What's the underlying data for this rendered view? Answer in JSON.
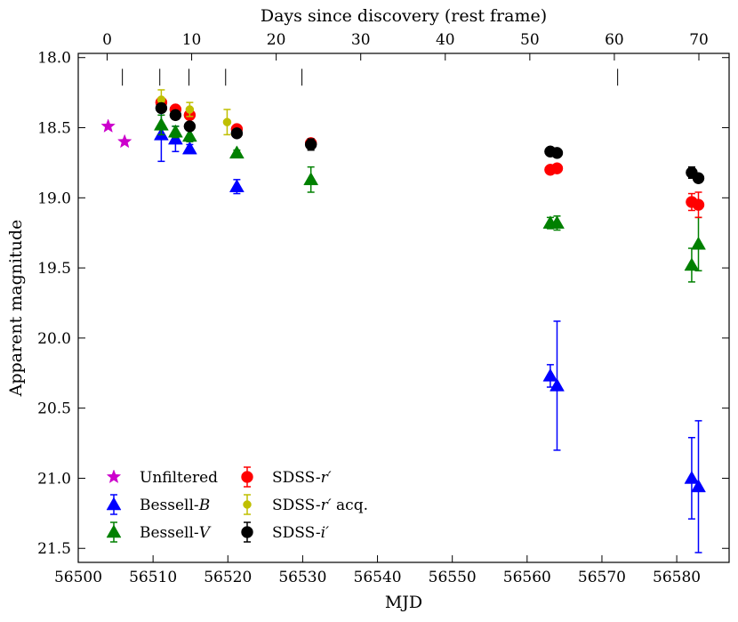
{
  "chart_data": {
    "type": "scatter",
    "xlabel": "MJD",
    "ylabel": "Apparent magnitude",
    "top_xlabel": "Days since discovery (rest frame)",
    "xlim": [
      56500,
      56587
    ],
    "ylim": [
      21.6,
      17.97
    ],
    "y_inverted": true,
    "x_ticks": [
      56500,
      56510,
      56520,
      56530,
      56540,
      56550,
      56560,
      56570,
      56580
    ],
    "x_tick_labels": [
      "56500",
      "56510",
      "56520",
      "56530",
      "56540",
      "56550",
      "56560",
      "56570",
      "56580"
    ],
    "y_ticks": [
      18.0,
      18.5,
      19.0,
      19.5,
      20.0,
      20.5,
      21.0,
      21.5
    ],
    "y_tick_labels": [
      "18.0",
      "18.5",
      "19.0",
      "19.5",
      "20.0",
      "20.5",
      "21.0",
      "21.5"
    ],
    "top_ticks": [
      0,
      10,
      20,
      30,
      40,
      50,
      60,
      70
    ],
    "top_tick_labels": [
      "0",
      "10",
      "20",
      "30",
      "40",
      "50",
      "60",
      "70"
    ],
    "top_axis": {
      "day0_mjd": 56503.86,
      "mjd_per_day": 1.13
    },
    "epoch_markers_mjd": [
      56505.9,
      56510.9,
      56514.8,
      56519.7,
      56529.9,
      56572.1
    ],
    "legend_position": "lower-left",
    "series": [
      {
        "name": "Unfiltered",
        "marker": "star",
        "color": "#cc00cc",
        "points": [
          {
            "x": 56504.0,
            "y": 18.49,
            "err": 0
          },
          {
            "x": 56506.2,
            "y": 18.6,
            "err": 0
          }
        ]
      },
      {
        "name": "Bessell-B",
        "marker": "triangle",
        "color": "#0000ff",
        "points": [
          {
            "x": 56511.1,
            "y": 18.55,
            "err": 0.19
          },
          {
            "x": 56513.0,
            "y": 18.58,
            "err": 0.09
          },
          {
            "x": 56514.9,
            "y": 18.65,
            "err": 0.03
          },
          {
            "x": 56521.2,
            "y": 18.92,
            "err": 0.05
          },
          {
            "x": 56563.1,
            "y": 20.27,
            "err": 0.08
          },
          {
            "x": 56564.0,
            "y": 20.34,
            "err": 0.46
          },
          {
            "x": 56582.0,
            "y": 21.0,
            "err": 0.29
          },
          {
            "x": 56582.9,
            "y": 21.06,
            "err": 0.47
          }
        ]
      },
      {
        "name": "Bessell-V",
        "marker": "triangle",
        "color": "#008000",
        "points": [
          {
            "x": 56511.1,
            "y": 18.48,
            "err": 0.07
          },
          {
            "x": 56513.0,
            "y": 18.53,
            "err": 0.04
          },
          {
            "x": 56514.9,
            "y": 18.56,
            "err": 0.04
          },
          {
            "x": 56521.2,
            "y": 18.68,
            "err": 0.02
          },
          {
            "x": 56531.1,
            "y": 18.87,
            "err": 0.09
          },
          {
            "x": 56563.1,
            "y": 19.18,
            "err": 0.04
          },
          {
            "x": 56564.0,
            "y": 19.18,
            "err": 0.05
          },
          {
            "x": 56582.0,
            "y": 19.48,
            "err": 0.12
          },
          {
            "x": 56582.9,
            "y": 19.33,
            "err": 0.19
          }
        ]
      },
      {
        "name": "SDSS-r′",
        "marker": "circle",
        "color": "#ff0000",
        "points": [
          {
            "x": 56511.1,
            "y": 18.32,
            "err": 0.03
          },
          {
            "x": 56513.0,
            "y": 18.37,
            "err": 0.03
          },
          {
            "x": 56514.9,
            "y": 18.41,
            "err": 0.03
          },
          {
            "x": 56521.2,
            "y": 18.51,
            "err": 0.02
          },
          {
            "x": 56531.1,
            "y": 18.61,
            "err": 0.03
          },
          {
            "x": 56563.1,
            "y": 18.8,
            "err": 0.02
          },
          {
            "x": 56564.0,
            "y": 18.79,
            "err": 0.02
          },
          {
            "x": 56582.0,
            "y": 19.03,
            "err": 0.06
          },
          {
            "x": 56582.9,
            "y": 19.05,
            "err": 0.09
          }
        ]
      },
      {
        "name": "SDSS-r′ acq.",
        "marker": "small-circle",
        "color": "#bfbf00",
        "points": [
          {
            "x": 56511.1,
            "y": 18.3,
            "err": 0.07
          },
          {
            "x": 56514.9,
            "y": 18.37,
            "err": 0.05
          },
          {
            "x": 56519.9,
            "y": 18.46,
            "err": 0.09
          }
        ]
      },
      {
        "name": "SDSS-i′",
        "marker": "circle",
        "color": "#000000",
        "points": [
          {
            "x": 56511.1,
            "y": 18.36,
            "err": 0.03
          },
          {
            "x": 56513.0,
            "y": 18.41,
            "err": 0.03
          },
          {
            "x": 56514.9,
            "y": 18.49,
            "err": 0.03
          },
          {
            "x": 56521.2,
            "y": 18.54,
            "err": 0.02
          },
          {
            "x": 56531.1,
            "y": 18.62,
            "err": 0.04
          },
          {
            "x": 56563.1,
            "y": 18.67,
            "err": 0.02
          },
          {
            "x": 56564.0,
            "y": 18.68,
            "err": 0.02
          },
          {
            "x": 56582.0,
            "y": 18.82,
            "err": 0.04
          },
          {
            "x": 56582.9,
            "y": 18.86,
            "err": 0.03
          }
        ]
      }
    ]
  },
  "legend": {
    "unfiltered": "Unfiltered",
    "bessell_b_prefix": "Bessell-",
    "bessell_b_italic": "B",
    "bessell_v_prefix": "Bessell-",
    "bessell_v_italic": "V",
    "sdss_r_prefix": "SDSS-",
    "sdss_r_italic": "r′",
    "sdss_racq_prefix": "SDSS-",
    "sdss_racq_italic": "r′",
    "sdss_racq_suffix": " acq.",
    "sdss_i_prefix": "SDSS-",
    "sdss_i_italic": "i′"
  }
}
